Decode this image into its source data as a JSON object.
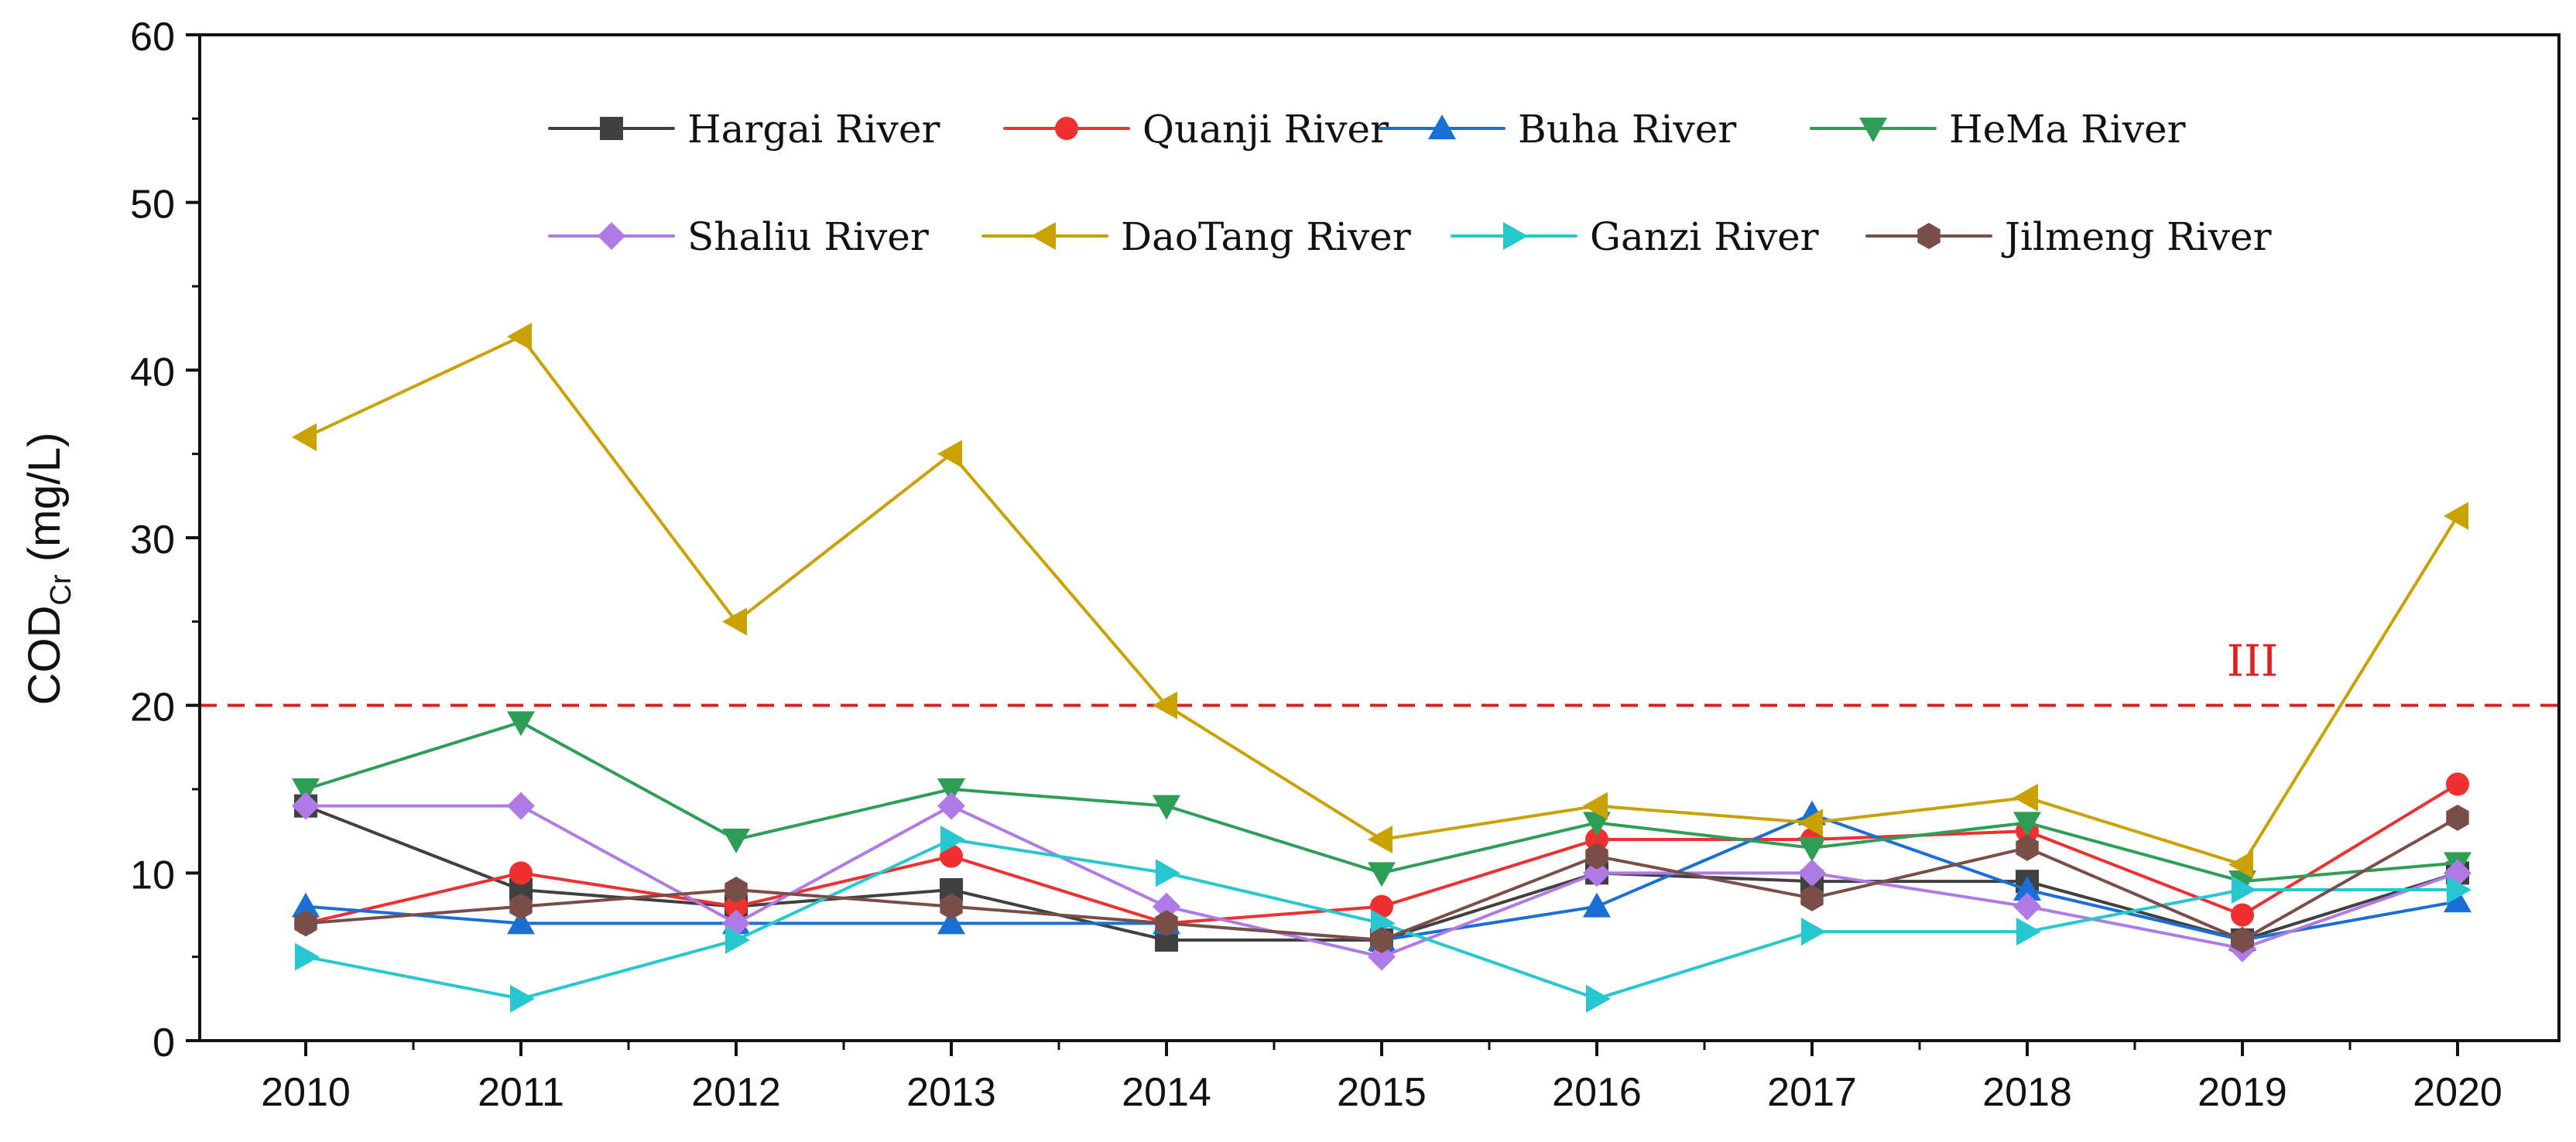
{
  "chart_data": {
    "type": "line",
    "title": "",
    "xlabel": "",
    "ylabel": {
      "main": "COD",
      "subscript": "Cr",
      "unit": " (mg/L)"
    },
    "categories": [
      "2010",
      "2011",
      "2012",
      "2013",
      "2014",
      "2015",
      "2016",
      "2017",
      "2018",
      "2019",
      "2020"
    ],
    "y_ticks": [
      0,
      10,
      20,
      30,
      40,
      50,
      60
    ],
    "ylim": [
      0,
      60
    ],
    "reference_line": {
      "value": 20,
      "label": "III",
      "color": "#e02020",
      "style": "dashed"
    },
    "legend_position": "top-inside",
    "series": [
      {
        "name": "Hargai River",
        "color": "#404040",
        "marker": "square",
        "values": [
          14,
          9,
          8,
          9,
          6,
          6,
          10,
          9.5,
          9.5,
          6,
          10
        ]
      },
      {
        "name": "Quanji River",
        "color": "#f03030",
        "marker": "circle",
        "values": [
          7,
          10,
          8,
          11,
          7,
          8,
          12,
          12,
          12.5,
          7.5,
          15.3
        ]
      },
      {
        "name": "Buha River",
        "color": "#1a6fd6",
        "marker": "triangle-up",
        "values": [
          8,
          7,
          7,
          7,
          7,
          6,
          8,
          13.5,
          9,
          6,
          8.3
        ]
      },
      {
        "name": "HeMa River",
        "color": "#2e9e57",
        "marker": "triangle-down",
        "values": [
          15,
          19,
          12,
          15,
          14,
          10,
          13,
          11.5,
          13,
          9.5,
          10.6
        ]
      },
      {
        "name": "Shaliu River",
        "color": "#b07ae6",
        "marker": "diamond",
        "values": [
          14,
          14,
          7,
          14,
          8,
          5,
          10,
          10,
          8,
          5.5,
          10
        ]
      },
      {
        "name": "DaoTang River",
        "color": "#c9a100",
        "marker": "triangle-left",
        "values": [
          36,
          42,
          25,
          35,
          20,
          12,
          14,
          13,
          14.5,
          10.5,
          31.3
        ]
      },
      {
        "name": "Ganzi River",
        "color": "#27c7d0",
        "marker": "triangle-right",
        "values": [
          5,
          2.5,
          6,
          12,
          10,
          7,
          2.5,
          6.5,
          6.5,
          9,
          9
        ]
      },
      {
        "name": "Jilmeng River",
        "color": "#7a4e48",
        "marker": "hexagon",
        "values": [
          7,
          8,
          9,
          8,
          7,
          6,
          11,
          8.5,
          11.5,
          6,
          13.3
        ]
      }
    ]
  }
}
